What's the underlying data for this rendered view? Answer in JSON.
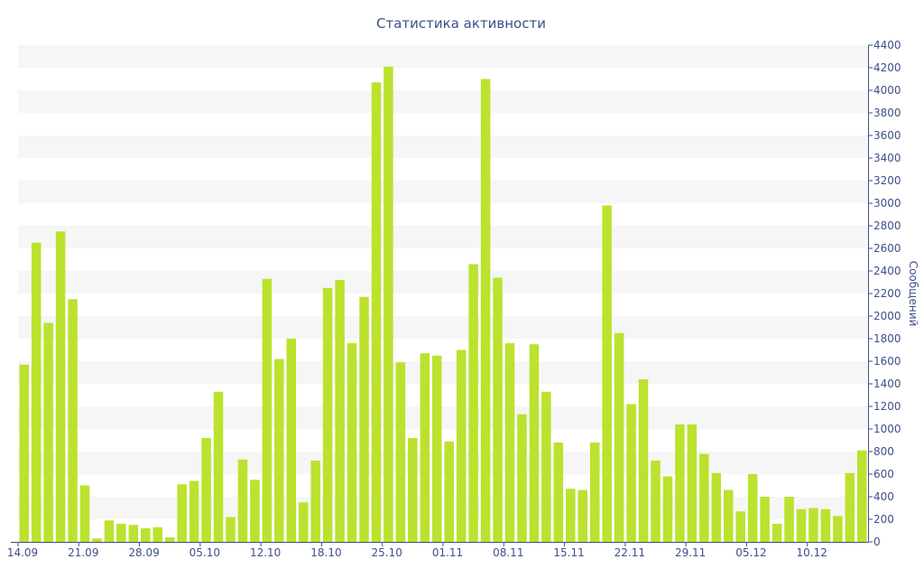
{
  "chart_data": {
    "type": "bar",
    "title": "Статистика активности",
    "xlabel": "",
    "ylabel": "Сообщений",
    "ylim": [
      0,
      4400
    ],
    "ytick_step": 200,
    "y_axis_side": "right",
    "grid": "alternating horizontal bands",
    "legend": "none",
    "bar_color": "#bbe22e",
    "band_color": "#f6f6f6",
    "text_color": "#3e4f8a",
    "x_tick_labels": [
      {
        "index": 0,
        "label": "14.09"
      },
      {
        "index": 5,
        "label": "21.09"
      },
      {
        "index": 10,
        "label": "28.09"
      },
      {
        "index": 15,
        "label": "05.10"
      },
      {
        "index": 20,
        "label": "12.10"
      },
      {
        "index": 25,
        "label": "18.10"
      },
      {
        "index": 30,
        "label": "25.10"
      },
      {
        "index": 35,
        "label": "01.11"
      },
      {
        "index": 40,
        "label": "08.11"
      },
      {
        "index": 45,
        "label": "15.11"
      },
      {
        "index": 50,
        "label": "22.11"
      },
      {
        "index": 55,
        "label": "29.11"
      },
      {
        "index": 60,
        "label": "05.12"
      },
      {
        "index": 65,
        "label": "10.12"
      }
    ],
    "values": [
      1570,
      2650,
      1940,
      2750,
      2150,
      500,
      30,
      190,
      160,
      150,
      120,
      130,
      40,
      510,
      540,
      920,
      1330,
      220,
      730,
      550,
      2330,
      1620,
      1800,
      350,
      720,
      2250,
      2320,
      1760,
      2170,
      4070,
      4210,
      1590,
      920,
      1670,
      1650,
      890,
      1700,
      2460,
      4100,
      2340,
      1760,
      1130,
      1750,
      1330,
      880,
      470,
      460,
      880,
      2980,
      1850,
      1220,
      1440,
      720,
      580,
      1040,
      1040,
      780,
      610,
      460,
      270,
      600,
      400,
      160,
      400,
      290,
      300,
      290,
      230,
      610,
      810
    ]
  }
}
